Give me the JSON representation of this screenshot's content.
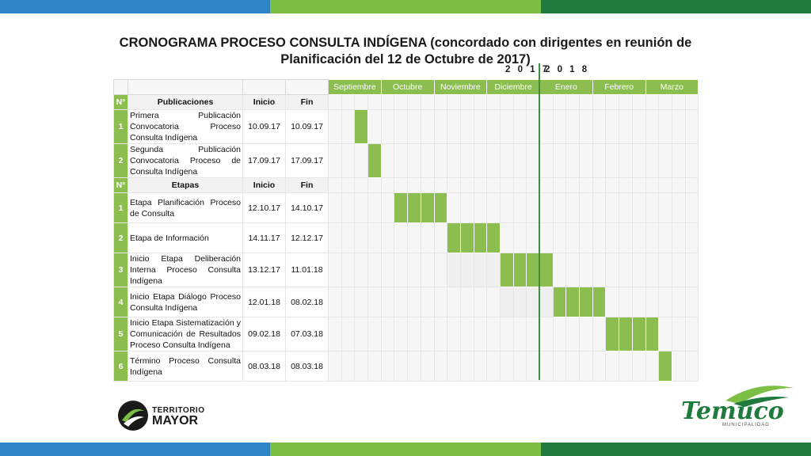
{
  "colors": {
    "accent_green": "#8bbd4f",
    "divider_green": "#3f8f3a",
    "band_blue": "#2f84c5",
    "band_light_green": "#7dbf45",
    "band_dark_green": "#1e7a3d"
  },
  "title": "CRONOGRAMA PROCESO CONSULTA INDÍGENA (concordado con dirigentes en reunión de Planificación del 12 de Octubre de 2017)",
  "years": {
    "left": "2 0 1 7",
    "right": "2 0 1 8"
  },
  "months": [
    "Septiembre",
    "Octubre",
    "Noviembre",
    "Diciembre",
    "Enero",
    "Febrero",
    "Marzo"
  ],
  "sections": [
    {
      "header": {
        "num": "N°",
        "name": "Publicaciones",
        "start": "Inicio",
        "end": "Fin"
      },
      "rows": [
        {
          "num": "1",
          "name": "Primera Publicación Convocatoria Proceso Consulta Indígena",
          "start": "10.09.17",
          "end": "10.09.17",
          "active_weeks": [
            2
          ]
        },
        {
          "num": "2",
          "name": "Segunda Publicación Convocatoria Proceso de Consulta Indígena",
          "start": "17.09.17",
          "end": "17.09.17",
          "active_weeks": [
            3
          ]
        }
      ]
    },
    {
      "header": {
        "num": "N°",
        "name": "Etapas",
        "start": "Inicio",
        "end": "Fin"
      },
      "rows": [
        {
          "num": "1",
          "name": "Etapa Planificación Proceso de Consulta",
          "start": "12.10.17",
          "end": "14.10.17",
          "active_weeks": [
            5,
            6,
            7,
            8
          ]
        },
        {
          "num": "2",
          "name": "Etapa de Información",
          "start": "14.11.17",
          "end": "12.12.17",
          "active_weeks": [
            9,
            10,
            11,
            12
          ]
        },
        {
          "num": "3",
          "name": "Inicio Etapa Deliberación Interna Proceso Consulta Indígena",
          "start": "13.12.17",
          "end": "11.01.18",
          "active_weeks": [
            13,
            14,
            15,
            16
          ]
        },
        {
          "num": "4",
          "name": "Inicio Etapa Diálogo Proceso Consulta Indígena",
          "start": "12.01.18",
          "end": "08.02.18",
          "active_weeks": [
            17,
            18,
            19,
            20
          ]
        },
        {
          "num": "5",
          "name": "Inicio Etapa Sistematización y Comunicación de Resultados Proceso Consulta Indígena",
          "start": "09.02.18",
          "end": "07.03.18",
          "active_weeks": [
            21,
            22,
            23,
            24
          ]
        },
        {
          "num": "6",
          "name": "Término Proceso Consulta Indígena",
          "start": "08.03.18",
          "end": "08.03.18",
          "active_weeks": [
            25
          ]
        }
      ]
    }
  ],
  "logo_left": {
    "line1": "TERRITORIO",
    "line2": "MAYOR"
  },
  "logo_right": {
    "name": "Temuco",
    "sub": "MUNICIPALIDAD"
  }
}
